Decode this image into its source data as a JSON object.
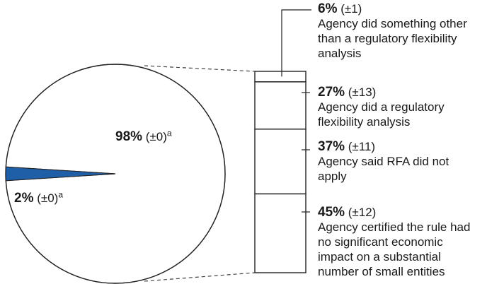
{
  "chart_data": {
    "type": "pie",
    "pie": {
      "slices": [
        {
          "pct": "98%",
          "value": 98,
          "err": "(±0)",
          "note": "a",
          "color": "#ffffff"
        },
        {
          "pct": "2%",
          "value": 2,
          "err": "(±0)",
          "note": "a",
          "color": "#1f5fa8"
        }
      ]
    },
    "breakdown": {
      "of_slice": "98%",
      "segments": [
        {
          "pct": "6%",
          "value": 6,
          "err": "(±1)",
          "desc": [
            "Agency did something other",
            "than a regulatory flexibility",
            "analysis"
          ]
        },
        {
          "pct": "27%",
          "value": 27,
          "err": "(±13)",
          "desc": [
            "Agency did a regulatory",
            "flexibility analysis"
          ]
        },
        {
          "pct": "37%",
          "value": 37,
          "err": "(±11)",
          "desc": [
            "Agency said RFA did not",
            "apply"
          ]
        },
        {
          "pct": "45%",
          "value": 45,
          "err": "(±12)",
          "desc": [
            "Agency certified the rule had",
            "no significant economic",
            "impact on a substantial",
            "number of small entities"
          ]
        }
      ]
    }
  }
}
